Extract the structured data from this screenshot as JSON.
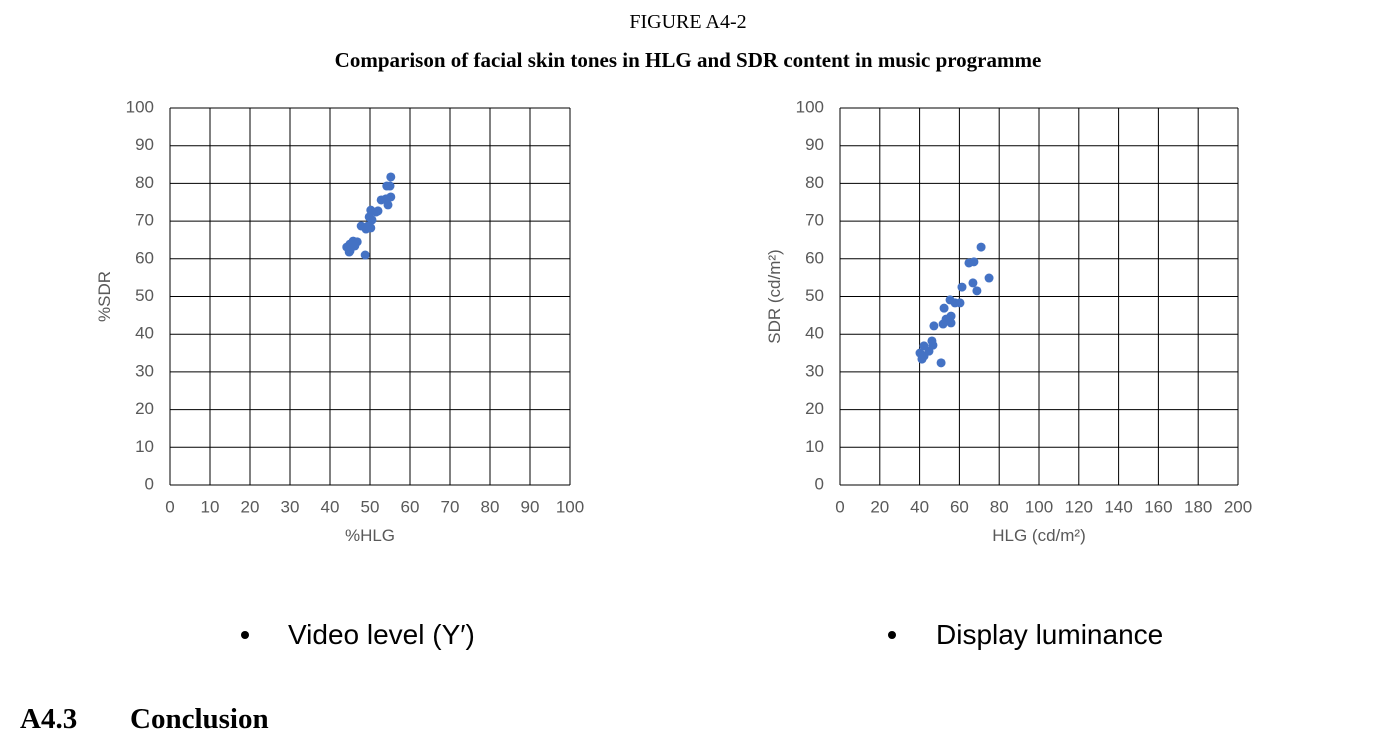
{
  "figure_label": "FIGURE A4-2",
  "figure_title": "Comparison of facial skin tones in HLG and SDR content in music programme",
  "chart_data": [
    {
      "type": "scatter",
      "x_label": "%HLG",
      "y_label": "%SDR",
      "color": "#4472c4",
      "grid": true,
      "xlim": [
        0,
        100
      ],
      "ylim": [
        0,
        100
      ],
      "xticks": [
        0,
        10,
        20,
        30,
        40,
        50,
        60,
        70,
        80,
        90,
        100
      ],
      "yticks": [
        0,
        10,
        20,
        30,
        40,
        50,
        60,
        70,
        80,
        90,
        100
      ],
      "x": [
        55.2,
        54.2,
        55,
        55.2,
        54,
        52.8,
        54.5,
        52,
        50.2,
        51.5,
        49.8,
        50.5,
        49.5,
        47.8,
        49,
        50.2,
        46.8,
        45.8,
        45,
        46.2,
        44.2,
        45,
        44.8,
        48.8
      ],
      "values": [
        81.7,
        79.3,
        79.3,
        76.4,
        75.9,
        75.6,
        74.3,
        72.7,
        72.9,
        72.4,
        71.1,
        70.3,
        68.7,
        68.7,
        67.9,
        68.2,
        64.5,
        64.7,
        63.9,
        63.4,
        63.1,
        62.1,
        61.8,
        61
      ]
    },
    {
      "type": "scatter",
      "x_label": "HLG (cd/m²)",
      "y_label": "SDR (cd/m²)",
      "color": "#4472c4",
      "grid": true,
      "xlim": [
        0,
        200
      ],
      "ylim": [
        0,
        100
      ],
      "xticks": [
        0,
        20,
        40,
        60,
        80,
        100,
        120,
        140,
        160,
        180,
        200
      ],
      "yticks": [
        0,
        10,
        20,
        30,
        40,
        50,
        60,
        70,
        80,
        90,
        100
      ],
      "x": [
        70.9,
        67.3,
        64.8,
        74.9,
        66.8,
        61.3,
        68.8,
        55.3,
        57.8,
        60.3,
        52.3,
        55.8,
        53.3,
        55.8,
        51.8,
        47.2,
        46.2,
        46.7,
        42.2,
        44.7,
        40.2,
        42.2,
        41.2,
        50.8
      ],
      "values": [
        63.1,
        59.2,
        58.9,
        54.9,
        53.6,
        52.5,
        51.5,
        49.1,
        48.3,
        48.3,
        46.9,
        44.8,
        44,
        43,
        42.7,
        42.2,
        38.2,
        37.1,
        36.9,
        35.5,
        35,
        34.2,
        33.4,
        32.4
      ]
    }
  ],
  "captions": [
    "Video level (Y′)",
    "Display luminance"
  ],
  "section": {
    "number": "A4.3",
    "title": "Conclusion"
  }
}
